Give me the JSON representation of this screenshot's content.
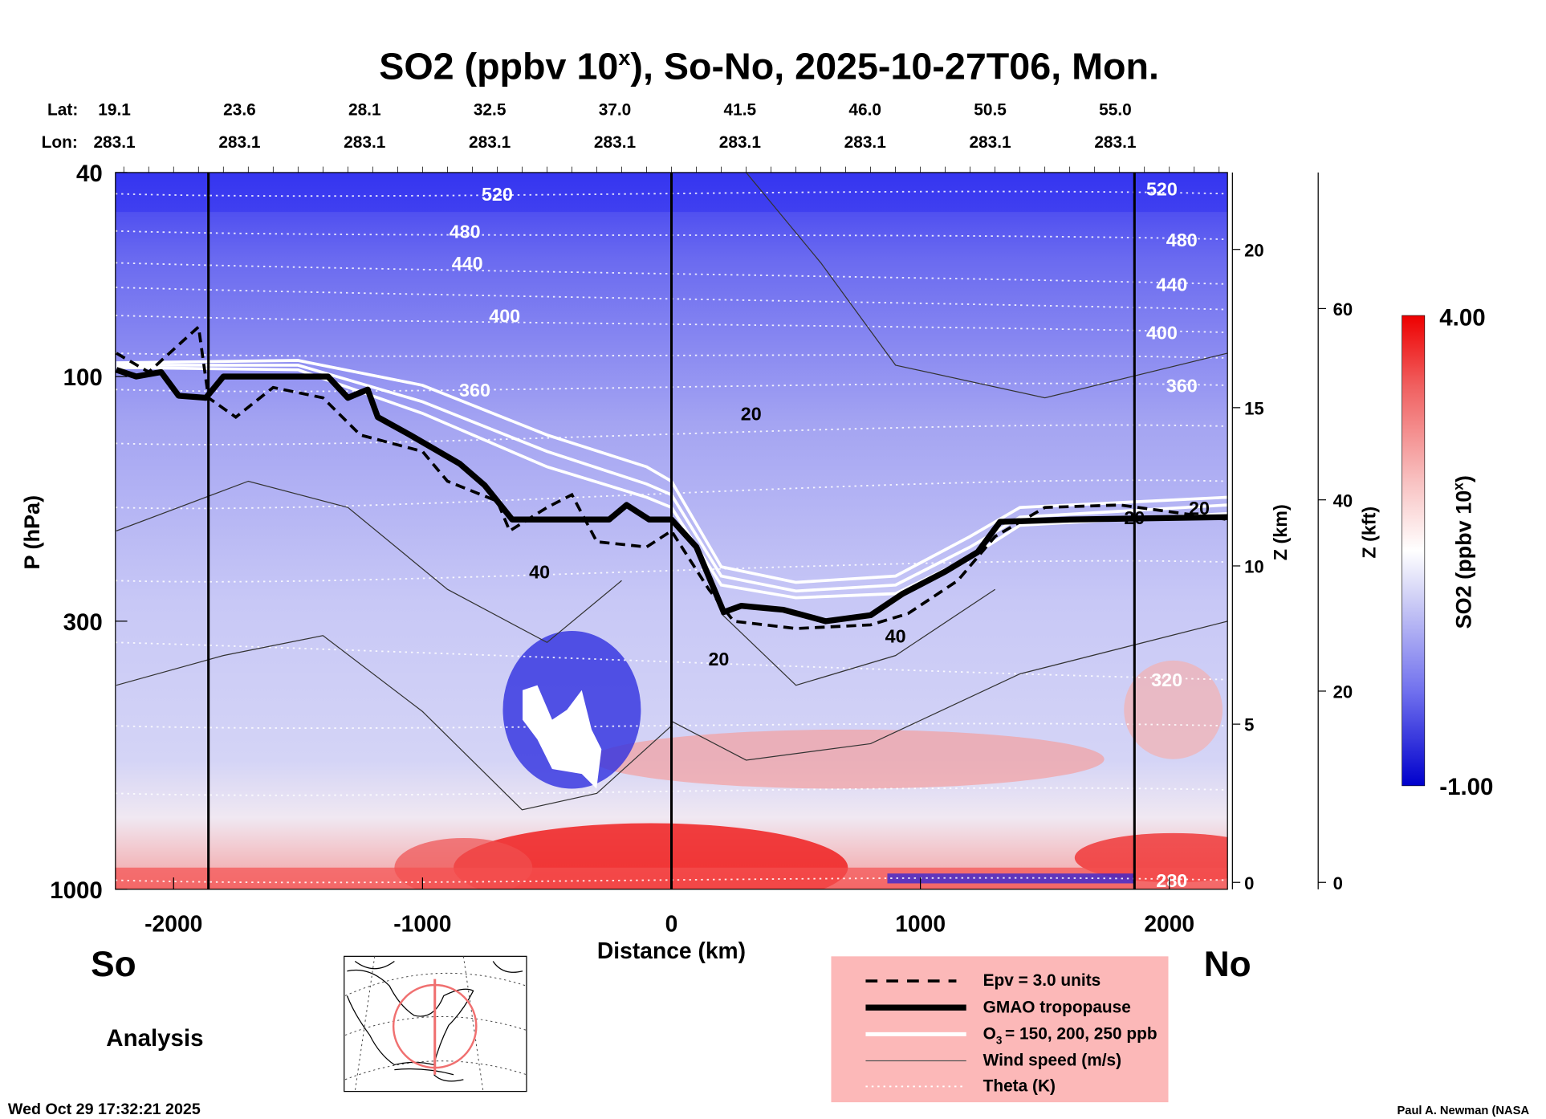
{
  "chart_data": {
    "type": "heatmap",
    "title": "SO2 (ppbv 10",
    "title_sup": "x",
    "title_rest": "), So-No, 2025-10-27T06, Mon.",
    "xlabel": "Distance (km)",
    "ylabel": "P (hPa)",
    "y2label": "Z (km)",
    "y3label": "Z (kft)",
    "xlim": [
      -2230,
      2234
    ],
    "ylim": [
      1000,
      40
    ],
    "x_ticks": [
      -2000,
      -1000,
      0,
      1000,
      2000
    ],
    "y_ticks": [
      40,
      100,
      300,
      1000
    ],
    "z_km_ticks": [
      0,
      5,
      10,
      15,
      20
    ],
    "z_kft_ticks": [
      0,
      20,
      40,
      60
    ],
    "vertical_lines_km": [
      -1860,
      0,
      1860
    ],
    "lat_label": "Lat:",
    "lon_label": "Lon:",
    "lat": [
      "19.1",
      "23.6",
      "28.1",
      "32.5",
      "37.0",
      "41.5",
      "46.0",
      "50.5",
      "55.0"
    ],
    "lon": [
      "283.1",
      "283.1",
      "283.1",
      "283.1",
      "283.1",
      "283.1",
      "283.1",
      "283.1",
      "283.1"
    ],
    "colorbar": {
      "label": "SO2 (ppbv 10",
      "label_sup": "x",
      "label_end": ")",
      "min": "-1.00",
      "max": "4.00",
      "colors": [
        "#0000dd",
        "#6666ee",
        "#c8c8f4",
        "#ffffff",
        "#f8c0c0",
        "#f06060",
        "#ee0000"
      ]
    },
    "theta_labels": [
      {
        "text": "520",
        "d": -700,
        "p": 44
      },
      {
        "text": "520",
        "d": 1970,
        "p": 43
      },
      {
        "text": "480",
        "d": -830,
        "p": 52
      },
      {
        "text": "480",
        "d": 2050,
        "p": 54
      },
      {
        "text": "440",
        "d": -820,
        "p": 60
      },
      {
        "text": "440",
        "d": 2010,
        "p": 66
      },
      {
        "text": "400",
        "d": -670,
        "p": 76
      },
      {
        "text": "400",
        "d": 1970,
        "p": 82
      },
      {
        "text": "360",
        "d": -790,
        "p": 106
      },
      {
        "text": "360",
        "d": 2050,
        "p": 104
      },
      {
        "text": "320",
        "d": 1990,
        "p": 390
      },
      {
        "text": "280",
        "d": 2010,
        "p": 960
      }
    ],
    "theta_lines_hPa": [
      [
        44,
        44
      ],
      [
        52,
        54
      ],
      [
        60,
        66
      ],
      [
        67,
        74
      ],
      [
        76,
        82
      ],
      [
        90,
        92
      ],
      [
        106,
        104
      ],
      [
        135,
        125
      ],
      [
        180,
        160
      ],
      [
        250,
        230
      ],
      [
        330,
        390
      ],
      [
        480,
        480
      ],
      [
        650,
        640
      ],
      [
        960,
        960
      ]
    ],
    "wind_labels": [
      {
        "text": "20",
        "d": 320,
        "p": 118
      },
      {
        "text": "40",
        "d": -530,
        "p": 240
      },
      {
        "text": "20",
        "d": 190,
        "p": 355
      },
      {
        "text": "40",
        "d": 900,
        "p": 320
      },
      {
        "text": "20",
        "d": 1860,
        "p": 188
      },
      {
        "text": "20",
        "d": 2120,
        "p": 180
      }
    ],
    "tropopause": [
      [
        -2230,
        97
      ],
      [
        -2150,
        100
      ],
      [
        -2050,
        98
      ],
      [
        -1980,
        109
      ],
      [
        -1870,
        110
      ],
      [
        -1800,
        100
      ],
      [
        -1380,
        100
      ],
      [
        -1300,
        110
      ],
      [
        -1220,
        106
      ],
      [
        -1180,
        120
      ],
      [
        -1050,
        130
      ],
      [
        -850,
        148
      ],
      [
        -750,
        163
      ],
      [
        -640,
        190
      ],
      [
        -250,
        190
      ],
      [
        -180,
        178
      ],
      [
        -90,
        190
      ],
      [
        0,
        190
      ],
      [
        100,
        215
      ],
      [
        210,
        288
      ],
      [
        280,
        280
      ],
      [
        450,
        285
      ],
      [
        620,
        300
      ],
      [
        800,
        292
      ],
      [
        930,
        265
      ],
      [
        1100,
        240
      ],
      [
        1230,
        220
      ],
      [
        1320,
        192
      ],
      [
        1600,
        190
      ],
      [
        2234,
        188
      ]
    ],
    "epv": [
      [
        -2230,
        90
      ],
      [
        -2100,
        98
      ],
      [
        -1960,
        85
      ],
      [
        -1900,
        80
      ],
      [
        -1860,
        110
      ],
      [
        -1750,
        120
      ],
      [
        -1600,
        105
      ],
      [
        -1400,
        110
      ],
      [
        -1250,
        130
      ],
      [
        -1000,
        140
      ],
      [
        -900,
        160
      ],
      [
        -700,
        175
      ],
      [
        -650,
        200
      ],
      [
        -500,
        180
      ],
      [
        -400,
        170
      ],
      [
        -300,
        210
      ],
      [
        -100,
        215
      ],
      [
        0,
        200
      ],
      [
        150,
        260
      ],
      [
        250,
        300
      ],
      [
        500,
        310
      ],
      [
        800,
        305
      ],
      [
        950,
        290
      ],
      [
        1150,
        250
      ],
      [
        1300,
        205
      ],
      [
        1500,
        180
      ],
      [
        1800,
        178
      ],
      [
        2234,
        190
      ]
    ],
    "o3_lines": [
      [
        [
          -2230,
          96
        ],
        [
          -1500,
          97
        ],
        [
          -1000,
          118
        ],
        [
          -500,
          150
        ],
        [
          -100,
          172
        ],
        [
          0,
          180
        ],
        [
          200,
          255
        ],
        [
          500,
          270
        ],
        [
          900,
          265
        ],
        [
          1200,
          225
        ],
        [
          1400,
          195
        ],
        [
          2234,
          185
        ]
      ],
      [
        [
          -2230,
          95
        ],
        [
          -1500,
          95
        ],
        [
          -1000,
          112
        ],
        [
          -500,
          140
        ],
        [
          -100,
          162
        ],
        [
          0,
          170
        ],
        [
          200,
          245
        ],
        [
          500,
          262
        ],
        [
          900,
          255
        ],
        [
          1200,
          215
        ],
        [
          1400,
          188
        ],
        [
          2234,
          178
        ]
      ],
      [
        [
          -2230,
          94
        ],
        [
          -1500,
          93
        ],
        [
          -1000,
          104
        ],
        [
          -500,
          130
        ],
        [
          -100,
          150
        ],
        [
          0,
          160
        ],
        [
          200,
          235
        ],
        [
          500,
          252
        ],
        [
          900,
          245
        ],
        [
          1200,
          205
        ],
        [
          1400,
          180
        ],
        [
          2234,
          172
        ]
      ]
    ]
  },
  "labels": {
    "so": "So",
    "no": "No",
    "analysis": "Analysis",
    "timestamp": "Wed Oct 29 17:32:21 2025",
    "credit": "Paul A. Newman (NASA"
  },
  "legend": {
    "items": [
      "Epv = 3.0 units",
      "GMAO tropopause",
      "= 150, 200, 250 ppb",
      "Wind speed (m/s)",
      "Theta (K)"
    ],
    "o3_prefix": "O",
    "o3_sub": "3",
    "bg": "#fcb8b8"
  }
}
